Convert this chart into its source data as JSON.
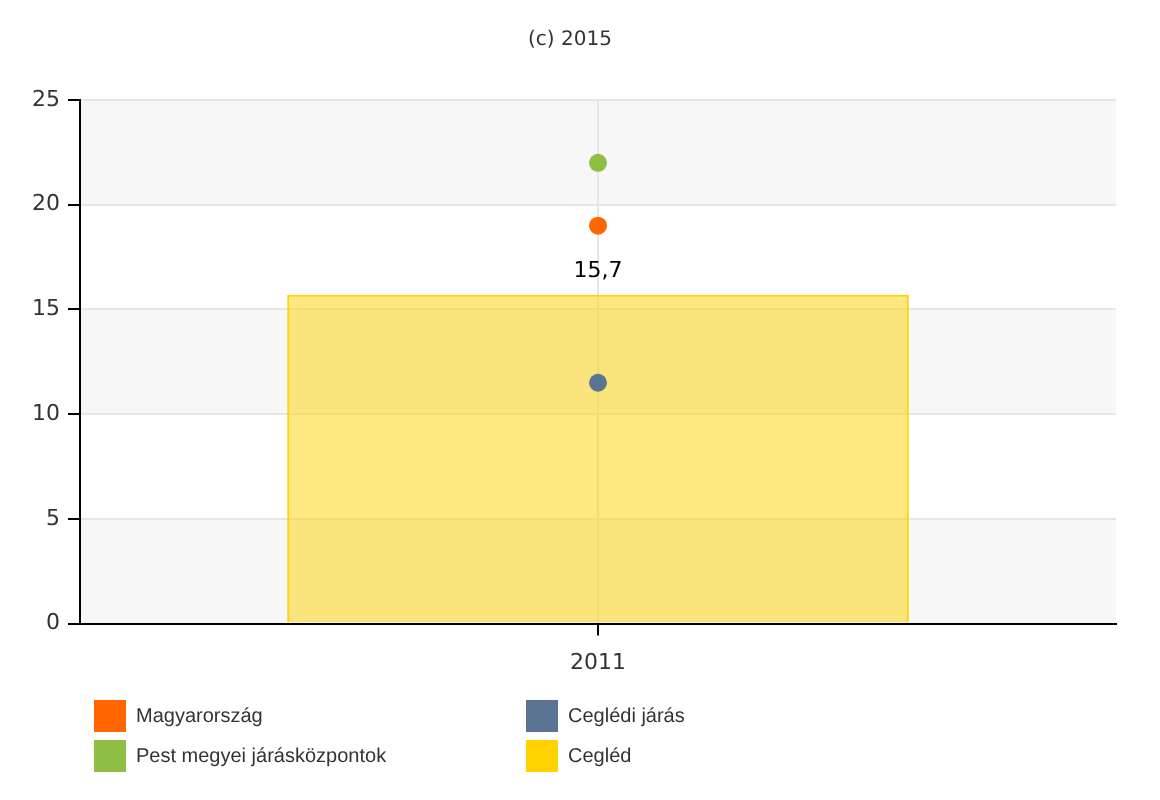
{
  "chart_data": {
    "type": "bar",
    "title": "(c) 2015",
    "categories": [
      "2011"
    ],
    "series": [
      {
        "name": "Magyarország",
        "type": "scatter",
        "color": "#ff6600",
        "values": [
          19
        ]
      },
      {
        "name": "Ceglédi járás",
        "type": "scatter",
        "color": "#5b7494",
        "values": [
          11.5
        ]
      },
      {
        "name": "Pest megyei járásközpontok",
        "type": "scatter",
        "color": "#8fbe45",
        "values": [
          22
        ]
      },
      {
        "name": "Cegléd",
        "color": "#ffd200",
        "values": [
          15.7
        ],
        "value_labels": [
          "15,7"
        ]
      }
    ],
    "ylim": [
      0,
      25
    ],
    "yticks": [
      0,
      5,
      10,
      15,
      20,
      25
    ],
    "grid": true,
    "legend": "bottom",
    "marker": "circle"
  }
}
